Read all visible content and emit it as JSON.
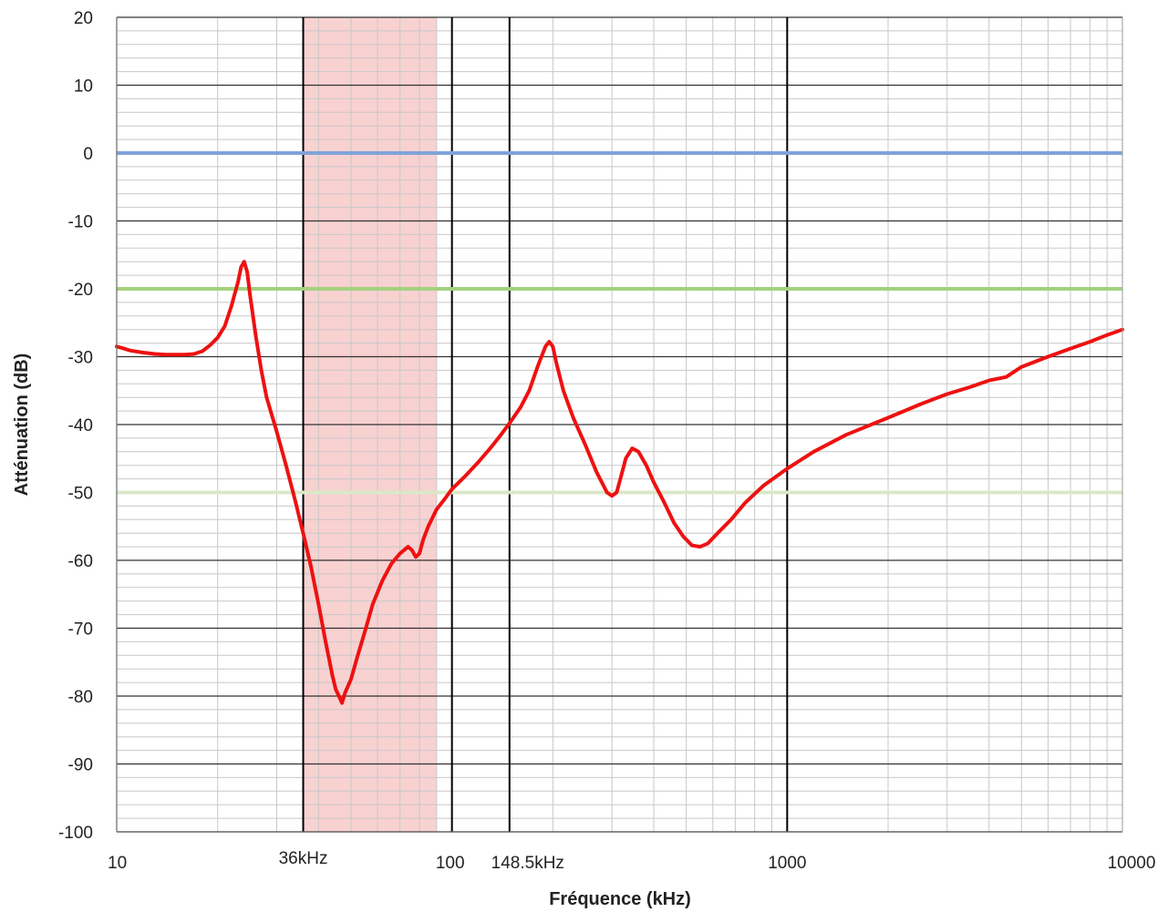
{
  "chart_data": {
    "type": "line",
    "title": "",
    "xlabel": "Fréquence (kHz)",
    "ylabel": "Atténuation (dB)",
    "xscale": "log",
    "xlim": [
      10,
      10000
    ],
    "ylim": [
      -100,
      20
    ],
    "grid": true,
    "legend": "none",
    "y_ticks": [
      "20",
      "10",
      "0",
      "-10",
      "-20",
      "-30",
      "-40",
      "-50",
      "-60",
      "-70",
      "-80",
      "-90",
      "-100"
    ],
    "x_ticks": [
      {
        "value": 10,
        "label": "10"
      },
      {
        "value": 36,
        "label": "36kHz"
      },
      {
        "value": 100,
        "label": "100"
      },
      {
        "value": 148.5,
        "label": "148.5kHz"
      },
      {
        "value": 1000,
        "label": "1000"
      },
      {
        "value": 10000,
        "label": "10000"
      }
    ],
    "shaded_band": {
      "from": 36,
      "to": 90,
      "color": "#f7c9c9"
    },
    "vertical_markers": [
      {
        "x": 36,
        "color": "#000000"
      },
      {
        "x": 100,
        "color": "#000000"
      },
      {
        "x": 148.5,
        "color": "#000000"
      },
      {
        "x": 1000,
        "color": "#000000"
      }
    ],
    "reference_lines": [
      {
        "y": 0,
        "color": "#7fa3d9"
      },
      {
        "y": -20,
        "color": "#a3d17f"
      },
      {
        "y": -50,
        "color": "#dbe8c8"
      }
    ],
    "series": [
      {
        "color": "#ee1111",
        "points": [
          [
            10,
            -28.5
          ],
          [
            10.5,
            -28.8
          ],
          [
            11,
            -29.1
          ],
          [
            12,
            -29.4
          ],
          [
            13,
            -29.6
          ],
          [
            14,
            -29.7
          ],
          [
            16,
            -29.7
          ],
          [
            17,
            -29.6
          ],
          [
            18,
            -29.2
          ],
          [
            19,
            -28.3
          ],
          [
            20,
            -27.2
          ],
          [
            21,
            -25.5
          ],
          [
            22,
            -22.5
          ],
          [
            23,
            -19.0
          ],
          [
            23.5,
            -16.8
          ],
          [
            24,
            -16.0
          ],
          [
            24.5,
            -17.5
          ],
          [
            25,
            -21.0
          ],
          [
            26,
            -27.0
          ],
          [
            27,
            -32.0
          ],
          [
            28,
            -36.0
          ],
          [
            30,
            -41.0
          ],
          [
            32,
            -46.0
          ],
          [
            34,
            -51.0
          ],
          [
            36,
            -56.0
          ],
          [
            38,
            -61.0
          ],
          [
            40,
            -66.5
          ],
          [
            42,
            -72.0
          ],
          [
            44,
            -77.0
          ],
          [
            45,
            -79.0
          ],
          [
            46,
            -80.0
          ],
          [
            47,
            -81.0
          ],
          [
            48,
            -79.5
          ],
          [
            50,
            -77.5
          ],
          [
            52,
            -74.5
          ],
          [
            55,
            -70.5
          ],
          [
            58,
            -66.5
          ],
          [
            62,
            -63.0
          ],
          [
            66,
            -60.5
          ],
          [
            70,
            -59.0
          ],
          [
            74,
            -58.0
          ],
          [
            76,
            -58.5
          ],
          [
            78,
            -59.5
          ],
          [
            80,
            -59.0
          ],
          [
            82,
            -57.0
          ],
          [
            85,
            -55.0
          ],
          [
            90,
            -52.5
          ],
          [
            95,
            -51.0
          ],
          [
            100,
            -49.5
          ],
          [
            110,
            -47.5
          ],
          [
            120,
            -45.5
          ],
          [
            130,
            -43.5
          ],
          [
            140,
            -41.5
          ],
          [
            150,
            -39.5
          ],
          [
            160,
            -37.5
          ],
          [
            170,
            -35.0
          ],
          [
            180,
            -31.5
          ],
          [
            190,
            -28.5
          ],
          [
            195,
            -27.8
          ],
          [
            200,
            -28.5
          ],
          [
            205,
            -31.0
          ],
          [
            215,
            -35.0
          ],
          [
            230,
            -39.0
          ],
          [
            250,
            -43.0
          ],
          [
            270,
            -47.0
          ],
          [
            290,
            -50.0
          ],
          [
            300,
            -50.5
          ],
          [
            310,
            -50.0
          ],
          [
            320,
            -47.5
          ],
          [
            330,
            -45.0
          ],
          [
            345,
            -43.5
          ],
          [
            360,
            -44.0
          ],
          [
            380,
            -46.0
          ],
          [
            400,
            -48.5
          ],
          [
            430,
            -51.5
          ],
          [
            460,
            -54.5
          ],
          [
            490,
            -56.5
          ],
          [
            520,
            -57.8
          ],
          [
            550,
            -58.0
          ],
          [
            580,
            -57.5
          ],
          [
            620,
            -56.0
          ],
          [
            680,
            -54.0
          ],
          [
            750,
            -51.5
          ],
          [
            850,
            -49.0
          ],
          [
            1000,
            -46.5
          ],
          [
            1200,
            -44.0
          ],
          [
            1500,
            -41.5
          ],
          [
            2000,
            -39.0
          ],
          [
            2500,
            -37.0
          ],
          [
            3000,
            -35.5
          ],
          [
            3500,
            -34.5
          ],
          [
            4000,
            -33.5
          ],
          [
            4500,
            -33.0
          ],
          [
            5000,
            -31.5
          ],
          [
            6000,
            -30.0
          ],
          [
            7000,
            -28.8
          ],
          [
            8000,
            -27.8
          ],
          [
            9000,
            -26.8
          ],
          [
            10000,
            -26.0
          ]
        ]
      }
    ]
  }
}
